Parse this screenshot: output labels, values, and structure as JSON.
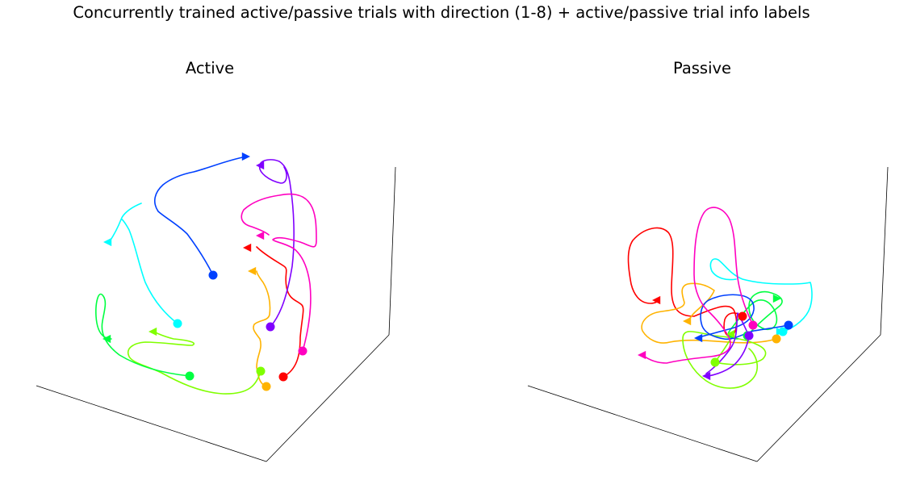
{
  "figure": {
    "title": "Concurrently trained active/passive trials with direction (1-8) + active/passive trial info labels"
  },
  "chart_data": [
    {
      "type": "line",
      "subtype": "3d-trajectory",
      "title": "Active",
      "axes_visible": false,
      "grid": false,
      "legend": "none",
      "series": [
        {
          "direction": 1,
          "color": "#ff0000",
          "marker_start": "circle",
          "marker_end": "triangle"
        },
        {
          "direction": 2,
          "color": "#ffb300",
          "marker_start": "circle",
          "marker_end": "triangle"
        },
        {
          "direction": 3,
          "color": "#80ff00",
          "marker_start": "circle",
          "marker_end": "triangle"
        },
        {
          "direction": 4,
          "color": "#00ff40",
          "marker_start": "circle",
          "marker_end": "triangle"
        },
        {
          "direction": 5,
          "color": "#00ffff",
          "marker_start": "circle",
          "marker_end": "triangle"
        },
        {
          "direction": 6,
          "color": "#0040ff",
          "marker_start": "circle",
          "marker_end": "triangle"
        },
        {
          "direction": 7,
          "color": "#8000ff",
          "marker_start": "circle",
          "marker_end": "triangle"
        },
        {
          "direction": 8,
          "color": "#ff00c0",
          "marker_start": "circle",
          "marker_end": "triangle"
        }
      ]
    },
    {
      "type": "line",
      "subtype": "3d-trajectory",
      "title": "Passive",
      "axes_visible": false,
      "grid": false,
      "legend": "none",
      "series": [
        {
          "direction": 1,
          "color": "#ff0000",
          "marker_start": "circle",
          "marker_end": "triangle"
        },
        {
          "direction": 2,
          "color": "#ffb300",
          "marker_start": "circle",
          "marker_end": "triangle"
        },
        {
          "direction": 3,
          "color": "#80ff00",
          "marker_start": "circle",
          "marker_end": "triangle"
        },
        {
          "direction": 4,
          "color": "#00ff40",
          "marker_start": "circle",
          "marker_end": "triangle"
        },
        {
          "direction": 5,
          "color": "#00ffff",
          "marker_start": "circle",
          "marker_end": "triangle"
        },
        {
          "direction": 6,
          "color": "#0040ff",
          "marker_start": "circle",
          "marker_end": "triangle"
        },
        {
          "direction": 7,
          "color": "#8000ff",
          "marker_start": "circle",
          "marker_end": "triangle"
        },
        {
          "direction": 8,
          "color": "#ff00c0",
          "marker_start": "circle",
          "marker_end": "triangle"
        }
      ]
    }
  ]
}
